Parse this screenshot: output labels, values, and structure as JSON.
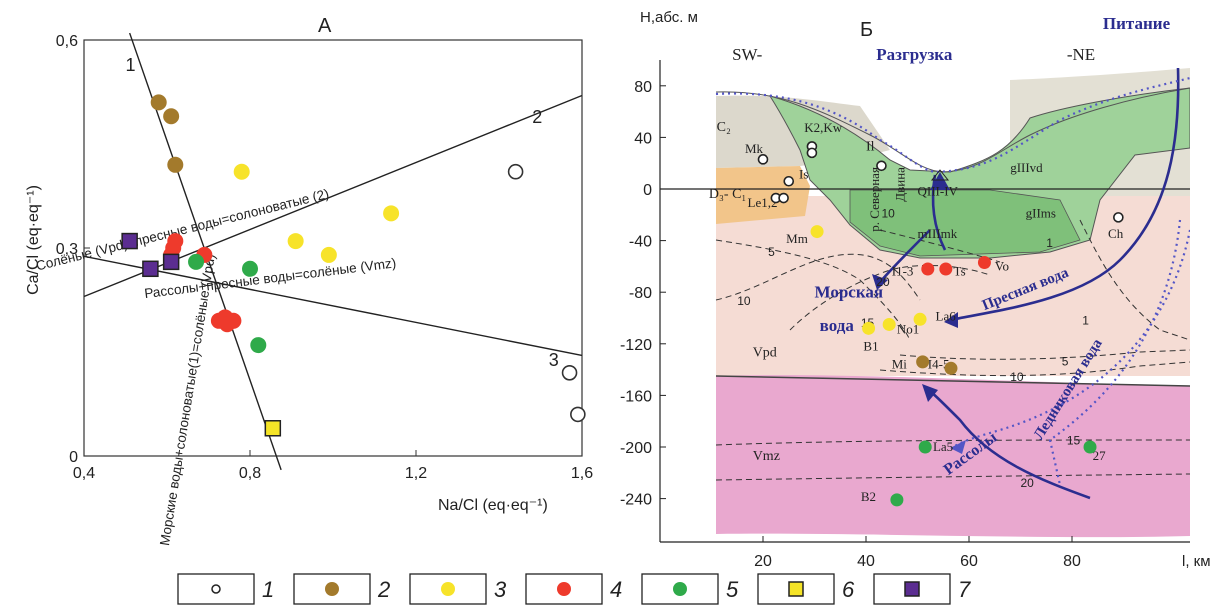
{
  "chart_data": [
    {
      "type": "scatter",
      "title": "А",
      "xlabel": "Na/Cl (eq·eq⁻¹)",
      "ylabel": "Ca/Cl (eq·eq⁻¹)",
      "xlim": [
        0.4,
        1.6
      ],
      "ylim": [
        0,
        0.6
      ],
      "x_ticks": [
        {
          "v": 0.4,
          "label": "0,4"
        },
        {
          "v": 0.8,
          "label": "0,8"
        },
        {
          "v": 1.2,
          "label": "1,2"
        },
        {
          "v": 1.6,
          "label": "1,6"
        }
      ],
      "y_ticks": [
        {
          "v": 0,
          "label": "0"
        },
        {
          "v": 0.3,
          "label": "0,3"
        },
        {
          "v": 0.6,
          "label": "0,6"
        }
      ],
      "lines": [
        {
          "id": "1",
          "x1": 0.51,
          "y1": 0.61,
          "x2": 0.875,
          "y2": -0.02,
          "label": "1",
          "lx": 0.5,
          "ly": 0.555
        },
        {
          "id": "2",
          "x1": 0.4,
          "y1": 0.23,
          "x2": 1.6,
          "y2": 0.52,
          "label": "2",
          "lx": 1.48,
          "ly": 0.48
        },
        {
          "id": "3",
          "x1": 0.4,
          "y1": 0.288,
          "x2": 1.6,
          "y2": 0.145,
          "label": "3",
          "lx": 1.52,
          "ly": 0.13
        }
      ],
      "line_labels": [
        {
          "text": "Солёные (Vpd)+пресные воды=солоноватые (2)",
          "x": 0.64,
          "y": 0.32,
          "rot": -14
        },
        {
          "text": "Рассолы+пресные воды=солёные (Vmz)",
          "x": 0.85,
          "y": 0.25,
          "rot": -7
        },
        {
          "text": "Морские воды+солоноватые(1)=солёные (Vpd)",
          "x": 0.66,
          "y": 0.08,
          "rot": -81
        }
      ],
      "series": [
        {
          "type": "1",
          "color": "#ffffff",
          "points": [
            [
              1.44,
              0.41
            ],
            [
              1.57,
              0.12
            ],
            [
              1.59,
              0.06
            ]
          ]
        },
        {
          "type": "2",
          "color": "#a37a2c",
          "points": [
            [
              0.58,
              0.51
            ],
            [
              0.61,
              0.49
            ],
            [
              0.62,
              0.42
            ]
          ]
        },
        {
          "type": "3",
          "color": "#f7e32a",
          "points": [
            [
              0.78,
              0.41
            ],
            [
              1.14,
              0.35
            ],
            [
              0.91,
              0.31
            ],
            [
              0.99,
              0.29
            ]
          ]
        },
        {
          "type": "4",
          "color": "#ee3a2c",
          "points": [
            [
              0.62,
              0.31
            ],
            [
              0.61,
              0.29
            ],
            [
              0.615,
              0.3
            ],
            [
              0.69,
              0.29
            ],
            [
              0.74,
              0.2
            ],
            [
              0.745,
              0.19
            ],
            [
              0.76,
              0.195
            ],
            [
              0.725,
              0.195
            ]
          ]
        },
        {
          "type": "5",
          "color": "#2faa4a",
          "points": [
            [
              0.67,
              0.28
            ],
            [
              0.8,
              0.27
            ],
            [
              0.82,
              0.16
            ]
          ]
        },
        {
          "type": "6",
          "color": "#f5e427",
          "points": [
            [
              0.855,
              0.04
            ]
          ]
        },
        {
          "type": "7",
          "color": "#5b2d91",
          "points": [
            [
              0.51,
              0.31
            ],
            [
              0.56,
              0.27
            ],
            [
              0.61,
              0.28
            ]
          ]
        }
      ]
    },
    {
      "type": "area",
      "title": "Б",
      "ylabel": "H,абс. м",
      "xlabel": "l, км",
      "xlim": [
        0,
        103
      ],
      "ylim": [
        -260,
        110
      ],
      "x_ticks": [
        {
          "v": 20,
          "label": "20"
        },
        {
          "v": 40,
          "label": "40"
        },
        {
          "v": 60,
          "label": "60"
        },
        {
          "v": 80,
          "label": "80"
        }
      ],
      "y_ticks": [
        {
          "v": 80,
          "label": "80"
        },
        {
          "v": 40,
          "label": "40"
        },
        {
          "v": 0,
          "label": "0"
        },
        {
          "v": -40,
          "label": "-40"
        },
        {
          "v": -80,
          "label": "-80"
        },
        {
          "v": -120,
          "label": "-120"
        },
        {
          "v": -160,
          "label": "-160"
        },
        {
          "v": -200,
          "label": "-200"
        },
        {
          "v": -240,
          "label": "-240"
        }
      ],
      "labels_plain": [
        {
          "text": "SW-",
          "x": 14,
          "y": 100,
          "size": 17
        },
        {
          "text": "-NE",
          "x": 79,
          "y": 100,
          "size": 17
        },
        {
          "text": "Mk",
          "x": 16.5,
          "y": 28,
          "size": 13
        },
        {
          "text": "K2,Kw",
          "x": 28,
          "y": 44,
          "size": 13
        },
        {
          "text": "Il",
          "x": 40,
          "y": 30,
          "size": 14
        },
        {
          "text": "Is",
          "x": 27,
          "y": 8,
          "size": 13
        },
        {
          "text": "Le1,2",
          "x": 17,
          "y": -14,
          "size": 13
        },
        {
          "text": "Mm",
          "x": 24.5,
          "y": -42,
          "size": 13
        },
        {
          "text": "QIII-IV",
          "x": 50,
          "y": -5,
          "size": 13
        },
        {
          "text": "gIIIvd",
          "x": 68,
          "y": 13,
          "size": 13
        },
        {
          "text": "mIIImk",
          "x": 50,
          "y": -38,
          "size": 13
        },
        {
          "text": "gIIms",
          "x": 71,
          "y": -22,
          "size": 13
        },
        {
          "text": "Ch",
          "x": 87,
          "y": -38,
          "size": 13
        },
        {
          "text": "I1-3",
          "x": 45,
          "y": -67,
          "size": 13
        },
        {
          "text": "Ts",
          "x": 57,
          "y": -67,
          "size": 13
        },
        {
          "text": "Vo",
          "x": 65,
          "y": -63,
          "size": 13
        },
        {
          "text": "La6",
          "x": 53.5,
          "y": -102,
          "size": 13
        },
        {
          "text": "No1",
          "x": 46,
          "y": -112,
          "size": 13
        },
        {
          "text": "B1",
          "x": 39.5,
          "y": -125,
          "size": 13
        },
        {
          "text": "Mi",
          "x": 45,
          "y": -139,
          "size": 13
        },
        {
          "text": "I4-5",
          "x": 52,
          "y": -139,
          "size": 13
        },
        {
          "text": "Vpd",
          "x": 18,
          "y": -130,
          "size": 14
        },
        {
          "text": "Vmz",
          "x": 18,
          "y": -210,
          "size": 14
        },
        {
          "text": "La5",
          "x": 53,
          "y": -203,
          "size": 13
        },
        {
          "text": "27",
          "x": 84,
          "y": -210,
          "size": 13
        },
        {
          "text": "B2",
          "x": 39,
          "y": -242,
          "size": 13
        },
        {
          "text": "р. Северная",
          "x": 42.5,
          "y": 17,
          "size": 13,
          "rot": -90
        },
        {
          "text": "Двина",
          "x": 47.5,
          "y": 17,
          "size": 13,
          "rot": -90
        },
        {
          "text": "C₂",
          "x": 11,
          "y": 45,
          "size": 14
        },
        {
          "text": "D₃- C₁",
          "x": 9.5,
          "y": -7,
          "size": 14
        }
      ],
      "contour_labels": [
        {
          "text": "10",
          "x": 43,
          "y": -22
        },
        {
          "text": "5",
          "x": 21,
          "y": -52
        },
        {
          "text": "10",
          "x": 15,
          "y": -90
        },
        {
          "text": "15",
          "x": 39,
          "y": -107
        },
        {
          "text": "20",
          "x": 42,
          "y": -75
        },
        {
          "text": "1",
          "x": 75,
          "y": -45
        },
        {
          "text": "1",
          "x": 82,
          "y": -105
        },
        {
          "text": "5",
          "x": 78,
          "y": -137
        },
        {
          "text": "10",
          "x": 68,
          "y": -149
        },
        {
          "text": "15",
          "x": 79,
          "y": -198
        },
        {
          "text": "20",
          "x": 70,
          "y": -231
        }
      ],
      "labels_blue": [
        {
          "text": "Разгрузка",
          "x": 42,
          "y": 100,
          "size": 17,
          "rot": 0
        },
        {
          "text": "Питание",
          "x": 86,
          "y": 124,
          "size": 17,
          "rot": 0
        },
        {
          "text": "Морская",
          "x": 30,
          "y": -84,
          "size": 17,
          "rot": 0
        },
        {
          "text": "вода",
          "x": 31,
          "y": -110,
          "size": 17,
          "rot": 0
        },
        {
          "text": "Пресная вода",
          "x": 63,
          "y": -94,
          "size": 15,
          "rot": -22
        },
        {
          "text": "Ледниковая вода",
          "x": 74,
          "y": -195,
          "size": 15,
          "rot": -58
        },
        {
          "text": "Рассолы",
          "x": 56,
          "y": -222,
          "size": 16,
          "rot": -36
        }
      ],
      "points": [
        {
          "type": "1",
          "color": "#ffffff",
          "x": 20,
          "y": 23
        },
        {
          "type": "1",
          "color": "#ffffff",
          "x": 29.5,
          "y": 33
        },
        {
          "type": "1",
          "color": "#ffffff",
          "x": 29.5,
          "y": 28
        },
        {
          "type": "1",
          "color": "#ffffff",
          "x": 25,
          "y": 6
        },
        {
          "type": "1",
          "color": "#ffffff",
          "x": 22.5,
          "y": -7
        },
        {
          "type": "1",
          "color": "#ffffff",
          "x": 24,
          "y": -7
        },
        {
          "type": "1",
          "color": "#ffffff",
          "x": 43,
          "y": 18
        },
        {
          "type": "1",
          "color": "#ffffff",
          "x": 89,
          "y": -22
        },
        {
          "type": "3",
          "color": "#f7e32a",
          "x": 30.5,
          "y": -33
        },
        {
          "type": "3",
          "color": "#f7e32a",
          "x": 50.5,
          "y": -101
        },
        {
          "type": "3",
          "color": "#f7e32a",
          "x": 40.5,
          "y": -108
        },
        {
          "type": "3",
          "color": "#f7e32a",
          "x": 44.5,
          "y": -105
        },
        {
          "type": "4",
          "color": "#ee3a2c",
          "x": 52,
          "y": -62
        },
        {
          "type": "4",
          "color": "#ee3a2c",
          "x": 55.5,
          "y": -62
        },
        {
          "type": "4",
          "color": "#ee3a2c",
          "x": 63,
          "y": -57
        },
        {
          "type": "2",
          "color": "#a37a2c",
          "x": 51,
          "y": -134
        },
        {
          "type": "2",
          "color": "#a37a2c",
          "x": 56.5,
          "y": -139
        },
        {
          "type": "5",
          "color": "#2faa4a",
          "x": 51.5,
          "y": -200
        },
        {
          "type": "5",
          "color": "#2faa4a",
          "x": 83.5,
          "y": -200
        },
        {
          "type": "5",
          "color": "#2faa4a",
          "x": 46,
          "y": -241
        }
      ]
    }
  ],
  "legend": [
    {
      "marker": "small-circle",
      "color": "#ffffff",
      "label": "1"
    },
    {
      "marker": "circle",
      "color": "#a37a2c",
      "label": "2"
    },
    {
      "marker": "circle",
      "color": "#f7e32a",
      "label": "3"
    },
    {
      "marker": "circle",
      "color": "#ee3a2c",
      "label": "4"
    },
    {
      "marker": "circle",
      "color": "#2faa4a",
      "label": "5"
    },
    {
      "marker": "square",
      "color": "#f5e427",
      "label": "6"
    },
    {
      "marker": "square",
      "color": "#5b2d91",
      "label": "7"
    }
  ]
}
